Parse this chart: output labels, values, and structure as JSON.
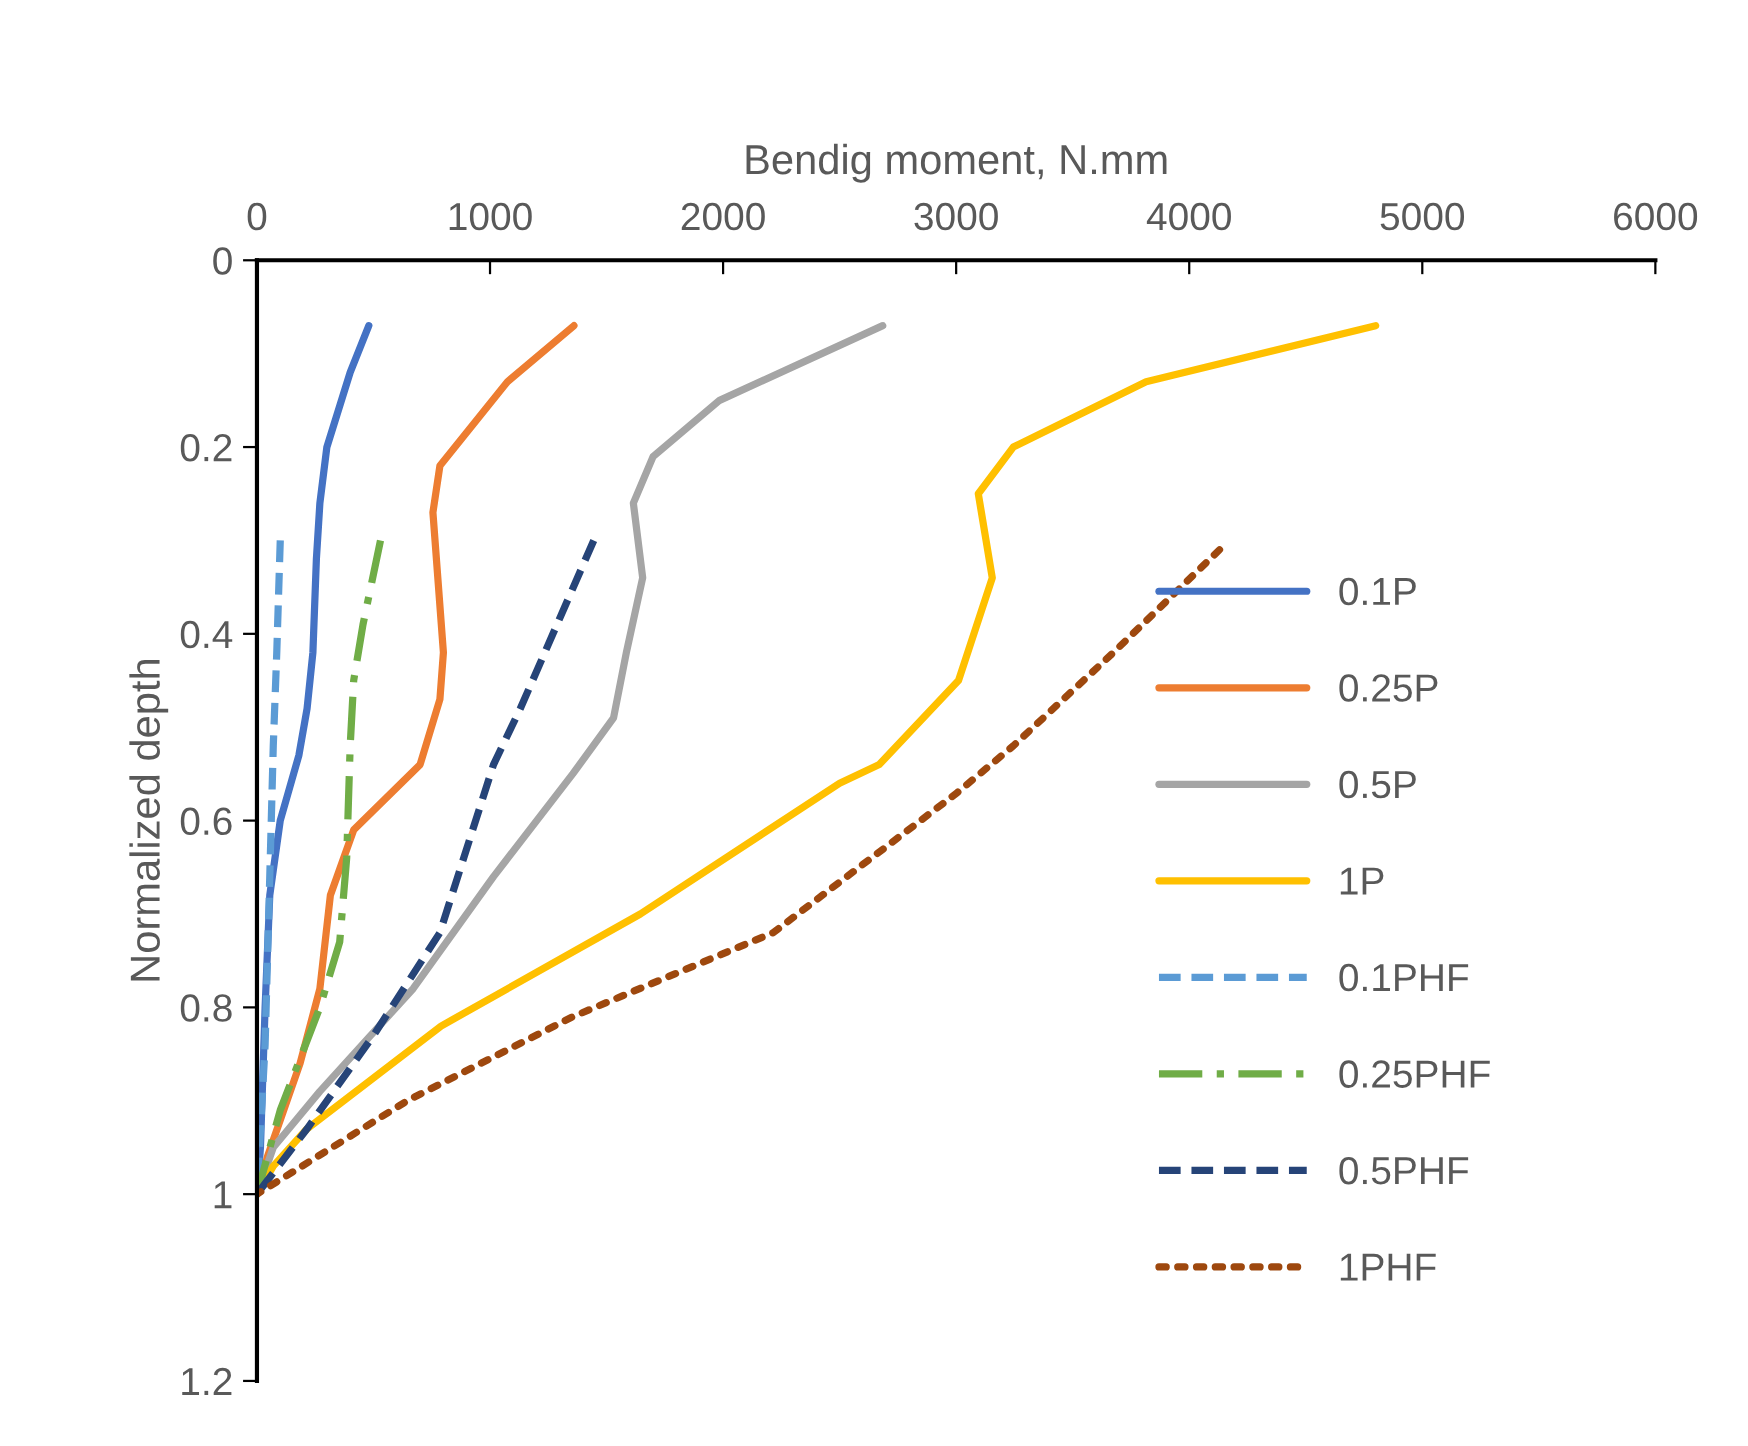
{
  "chart_data": {
    "type": "line",
    "xlabel": "Bendig moment, N.mm",
    "ylabel": "Normalized depth",
    "xlim": [
      0,
      6000
    ],
    "xticks": [
      0,
      1000,
      2000,
      3000,
      4000,
      5000,
      6000
    ],
    "ylim": [
      1.2,
      0
    ],
    "yticks": [
      0,
      0.2,
      0.4,
      0.6,
      0.8,
      1,
      1.2
    ],
    "grid": false,
    "legend": "right",
    "series": [
      {
        "name": "0.1P",
        "color": "#4472c4",
        "line_style": "solid",
        "x": [
          480,
          400,
          300,
          270,
          255,
          240,
          215,
          180,
          100,
          55,
          35,
          15,
          0
        ],
        "values": [
          0.07,
          0.12,
          0.2,
          0.26,
          0.32,
          0.42,
          0.48,
          0.53,
          0.6,
          0.68,
          0.8,
          0.95,
          1.0
        ]
      },
      {
        "name": "0.25P",
        "color": "#ed7d31",
        "line_style": "solid",
        "x": [
          1360,
          1075,
          785,
          755,
          800,
          785,
          700,
          415,
          315,
          270,
          185,
          45,
          0
        ],
        "values": [
          0.07,
          0.13,
          0.22,
          0.27,
          0.42,
          0.47,
          0.54,
          0.61,
          0.68,
          0.78,
          0.86,
          0.96,
          1.0
        ]
      },
      {
        "name": "0.5P",
        "color": "#a5a5a5",
        "line_style": "solid",
        "x": [
          2685,
          1985,
          1700,
          1615,
          1655,
          1585,
          1530,
          1355,
          1015,
          670,
          270,
          70,
          0
        ],
        "values": [
          0.07,
          0.15,
          0.21,
          0.26,
          0.34,
          0.42,
          0.49,
          0.55,
          0.66,
          0.78,
          0.89,
          0.95,
          1.0
        ]
      },
      {
        "name": "1P",
        "color": "#ffc000",
        "line_style": "solid",
        "x": [
          4800,
          3815,
          3245,
          3095,
          3155,
          3010,
          2670,
          2500,
          1645,
          790,
          215,
          70,
          0
        ],
        "values": [
          0.07,
          0.13,
          0.2,
          0.25,
          0.34,
          0.45,
          0.54,
          0.56,
          0.7,
          0.82,
          0.93,
          0.97,
          1.0
        ]
      },
      {
        "name": "0.1PHF",
        "color": "#5b9bd5",
        "line_style": "dashed",
        "x": [
          100,
          85,
          70,
          55,
          35,
          0
        ],
        "values": [
          0.3,
          0.42,
          0.52,
          0.66,
          0.84,
          1.0
        ]
      },
      {
        "name": "0.25PHF",
        "color": "#70ad47",
        "line_style": "dashdot",
        "x": [
          530,
          455,
          415,
          400,
          385,
          355,
          270,
          100,
          0
        ],
        "values": [
          0.3,
          0.39,
          0.45,
          0.52,
          0.64,
          0.73,
          0.8,
          0.91,
          1.0
        ]
      },
      {
        "name": "0.5PHF",
        "color": "#264478",
        "line_style": "dashed",
        "x": [
          1445,
          1130,
          1015,
          785,
          500,
          215,
          0
        ],
        "values": [
          0.3,
          0.48,
          0.54,
          0.72,
          0.83,
          0.93,
          1.0
        ]
      },
      {
        "name": "1PHF",
        "color": "#9e480e",
        "line_style": "dotted",
        "x": [
          4130,
          3675,
          3245,
          3005,
          2215,
          1355,
          645,
          0
        ],
        "values": [
          0.31,
          0.42,
          0.52,
          0.57,
          0.72,
          0.81,
          0.9,
          1.0
        ]
      }
    ]
  }
}
